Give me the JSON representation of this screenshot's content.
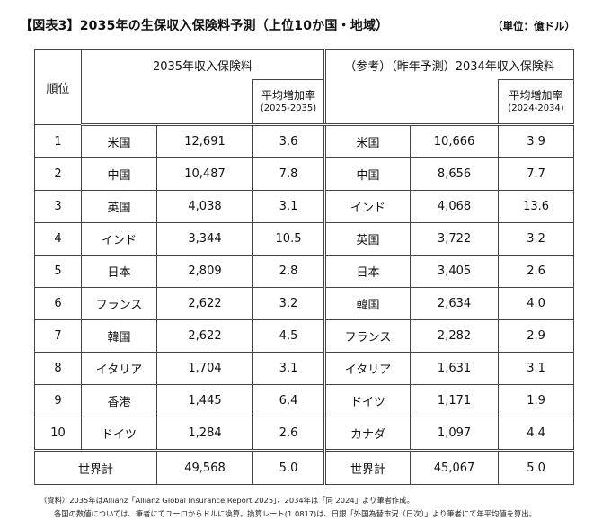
{
  "title": "【図表3】2035年の生保収入保険料予測（上位10か国・地域）",
  "unit": "（単位：億ドル）",
  "headers": {
    "rank": "順位",
    "group_2035": "2035年収入保険料",
    "group_2034": "（参考）（昨年予測）2034年収入保険料",
    "growth_2035_label": "平均増加率",
    "growth_2035_period": "(2025-2035)",
    "growth_2034_label": "平均増加率",
    "growth_2034_period": "(2024-2034)"
  },
  "rows": [
    {
      "rank": "1",
      "country_2035": "米国",
      "premium_2035": "12,691",
      "growth_2035": "3.6",
      "country_2034": "米国",
      "premium_2034": "10,666",
      "growth_2034": "3.9"
    },
    {
      "rank": "2",
      "country_2035": "中国",
      "premium_2035": "10,487",
      "growth_2035": "7.8",
      "country_2034": "中国",
      "premium_2034": "8,656",
      "growth_2034": "7.7"
    },
    {
      "rank": "3",
      "country_2035": "英国",
      "premium_2035": "4,038",
      "growth_2035": "3.1",
      "country_2034": "インド",
      "premium_2034": "4,068",
      "growth_2034": "13.6"
    },
    {
      "rank": "4",
      "country_2035": "インド",
      "premium_2035": "3,344",
      "growth_2035": "10.5",
      "country_2034": "英国",
      "premium_2034": "3,722",
      "growth_2034": "3.2"
    },
    {
      "rank": "5",
      "country_2035": "日本",
      "premium_2035": "2,809",
      "growth_2035": "2.8",
      "country_2034": "日本",
      "premium_2034": "3,405",
      "growth_2034": "2.6"
    },
    {
      "rank": "6",
      "country_2035": "フランス",
      "premium_2035": "2,622",
      "growth_2035": "3.2",
      "country_2034": "韓国",
      "premium_2034": "2,634",
      "growth_2034": "4.0"
    },
    {
      "rank": "7",
      "country_2035": "韓国",
      "premium_2035": "2,622",
      "growth_2035": "4.5",
      "country_2034": "フランス",
      "premium_2034": "2,282",
      "growth_2034": "2.9"
    },
    {
      "rank": "8",
      "country_2035": "イタリア",
      "premium_2035": "1,704",
      "growth_2035": "3.1",
      "country_2034": "イタリア",
      "premium_2034": "1,631",
      "growth_2034": "3.1"
    },
    {
      "rank": "9",
      "country_2035": "香港",
      "premium_2035": "1,445",
      "growth_2035": "6.4",
      "country_2034": "ドイツ",
      "premium_2034": "1,171",
      "growth_2034": "1.9"
    },
    {
      "rank": "10",
      "country_2035": "ドイツ",
      "premium_2035": "1,284",
      "growth_2035": "2.6",
      "country_2034": "カナダ",
      "premium_2034": "1,097",
      "growth_2034": "4.4"
    }
  ],
  "total": {
    "label_2035": "世界計",
    "premium_2035": "49,568",
    "growth_2035": "5.0",
    "label_2034": "世界計",
    "premium_2034": "45,067",
    "growth_2034": "5.0"
  },
  "notes": [
    "（資料）2035年はAllianz「Allianz Global Insurance Report 2025」、2034年は「同 2024」より筆者作成。",
    "各国の数値については、筆者にてユーロからドルに換算。換算レート(1.0817)は、日銀「外国為替市況（日次）」より筆者にて年平均値を算出。"
  ]
}
